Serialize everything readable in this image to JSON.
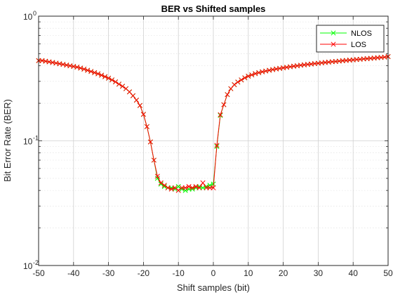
{
  "chart_data": {
    "type": "line",
    "title": "BER vs Shifted samples",
    "xlabel": "Shift samples (bit)",
    "ylabel": "Bit Error Rate (BER)",
    "xlim": [
      -50,
      50
    ],
    "ylim": [
      0.01,
      1
    ],
    "yscale": "log",
    "grid": true,
    "minor_grid": true,
    "legend_position": "top-right",
    "xticks": [
      -50,
      -40,
      -30,
      -20,
      -10,
      0,
      10,
      20,
      30,
      40,
      50
    ],
    "xtick_labels": [
      "-50",
      "-40",
      "-30",
      "-20",
      "-10",
      "0",
      "10",
      "20",
      "30",
      "40",
      "50"
    ],
    "yticks": [
      {
        "value": 0.01,
        "base": "10",
        "exp": "-2"
      },
      {
        "value": 0.1,
        "base": "10",
        "exp": "-1"
      },
      {
        "value": 1,
        "base": "10",
        "exp": "0"
      }
    ],
    "series": [
      {
        "name": "NLOS",
        "color": "#00ff00",
        "marker": "x",
        "x": [
          -50,
          -49,
          -48,
          -47,
          -46,
          -45,
          -44,
          -43,
          -42,
          -41,
          -40,
          -39,
          -38,
          -37,
          -36,
          -35,
          -34,
          -33,
          -32,
          -31,
          -30,
          -29,
          -28,
          -27,
          -26,
          -25,
          -24,
          -23,
          -22,
          -21,
          -20,
          -19,
          -18,
          -17,
          -16,
          -15,
          -14,
          -13,
          -12,
          -11,
          -10,
          -9,
          -8,
          -7,
          -6,
          -5,
          -4,
          -3,
          -2,
          -1,
          0,
          1,
          2,
          3,
          4,
          5,
          6,
          7,
          8,
          9,
          10,
          11,
          12,
          13,
          14,
          15,
          16,
          17,
          18,
          19,
          20,
          21,
          22,
          23,
          24,
          25,
          26,
          27,
          28,
          29,
          30,
          31,
          32,
          33,
          34,
          35,
          36,
          37,
          38,
          39,
          40,
          41,
          42,
          43,
          44,
          45,
          46,
          47,
          48,
          49,
          50
        ],
        "y": [
          0.44,
          0.44,
          0.435,
          0.43,
          0.425,
          0.42,
          0.415,
          0.41,
          0.405,
          0.4,
          0.395,
          0.39,
          0.383,
          0.376,
          0.368,
          0.36,
          0.352,
          0.345,
          0.336,
          0.327,
          0.318,
          0.308,
          0.297,
          0.285,
          0.274,
          0.262,
          0.247,
          0.23,
          0.212,
          0.192,
          0.163,
          0.13,
          0.098,
          0.07,
          0.05,
          0.045,
          0.043,
          0.042,
          0.042,
          0.041,
          0.043,
          0.041,
          0.04,
          0.041,
          0.041,
          0.042,
          0.043,
          0.042,
          0.043,
          0.044,
          0.045,
          0.09,
          0.16,
          0.195,
          0.235,
          0.262,
          0.282,
          0.296,
          0.308,
          0.32,
          0.33,
          0.338,
          0.346,
          0.352,
          0.358,
          0.363,
          0.368,
          0.373,
          0.377,
          0.381,
          0.385,
          0.389,
          0.393,
          0.397,
          0.4,
          0.404,
          0.407,
          0.41,
          0.413,
          0.416,
          0.419,
          0.422,
          0.425,
          0.428,
          0.431,
          0.433,
          0.436,
          0.439,
          0.441,
          0.444,
          0.446,
          0.449,
          0.451,
          0.454,
          0.456,
          0.459,
          0.461,
          0.464,
          0.466,
          0.469,
          0.474
        ]
      },
      {
        "name": "LOS",
        "color": "#ff0000",
        "marker": "x",
        "x": [
          -50,
          -49,
          -48,
          -47,
          -46,
          -45,
          -44,
          -43,
          -42,
          -41,
          -40,
          -39,
          -38,
          -37,
          -36,
          -35,
          -34,
          -33,
          -32,
          -31,
          -30,
          -29,
          -28,
          -27,
          -26,
          -25,
          -24,
          -23,
          -22,
          -21,
          -20,
          -19,
          -18,
          -17,
          -16,
          -15,
          -14,
          -13,
          -12,
          -11,
          -10,
          -9,
          -8,
          -7,
          -6,
          -5,
          -4,
          -3,
          -2,
          -1,
          0,
          1,
          2,
          3,
          4,
          5,
          6,
          7,
          8,
          9,
          10,
          11,
          12,
          13,
          14,
          15,
          16,
          17,
          18,
          19,
          20,
          21,
          22,
          23,
          24,
          25,
          26,
          27,
          28,
          29,
          30,
          31,
          32,
          33,
          34,
          35,
          36,
          37,
          38,
          39,
          40,
          41,
          42,
          43,
          44,
          45,
          46,
          47,
          48,
          49,
          50
        ],
        "y": [
          0.44,
          0.44,
          0.435,
          0.43,
          0.425,
          0.42,
          0.415,
          0.41,
          0.405,
          0.4,
          0.395,
          0.39,
          0.383,
          0.376,
          0.368,
          0.36,
          0.352,
          0.345,
          0.336,
          0.327,
          0.318,
          0.308,
          0.297,
          0.285,
          0.274,
          0.262,
          0.247,
          0.23,
          0.212,
          0.192,
          0.163,
          0.13,
          0.098,
          0.07,
          0.052,
          0.046,
          0.044,
          0.042,
          0.041,
          0.042,
          0.04,
          0.042,
          0.042,
          0.043,
          0.042,
          0.043,
          0.042,
          0.046,
          0.042,
          0.042,
          0.042,
          0.092,
          0.162,
          0.195,
          0.235,
          0.262,
          0.282,
          0.296,
          0.308,
          0.32,
          0.33,
          0.338,
          0.346,
          0.352,
          0.358,
          0.363,
          0.368,
          0.373,
          0.377,
          0.381,
          0.385,
          0.389,
          0.393,
          0.397,
          0.4,
          0.404,
          0.407,
          0.41,
          0.413,
          0.416,
          0.419,
          0.422,
          0.425,
          0.428,
          0.431,
          0.433,
          0.436,
          0.439,
          0.441,
          0.444,
          0.446,
          0.449,
          0.451,
          0.454,
          0.456,
          0.459,
          0.461,
          0.464,
          0.466,
          0.469,
          0.474
        ]
      }
    ]
  }
}
